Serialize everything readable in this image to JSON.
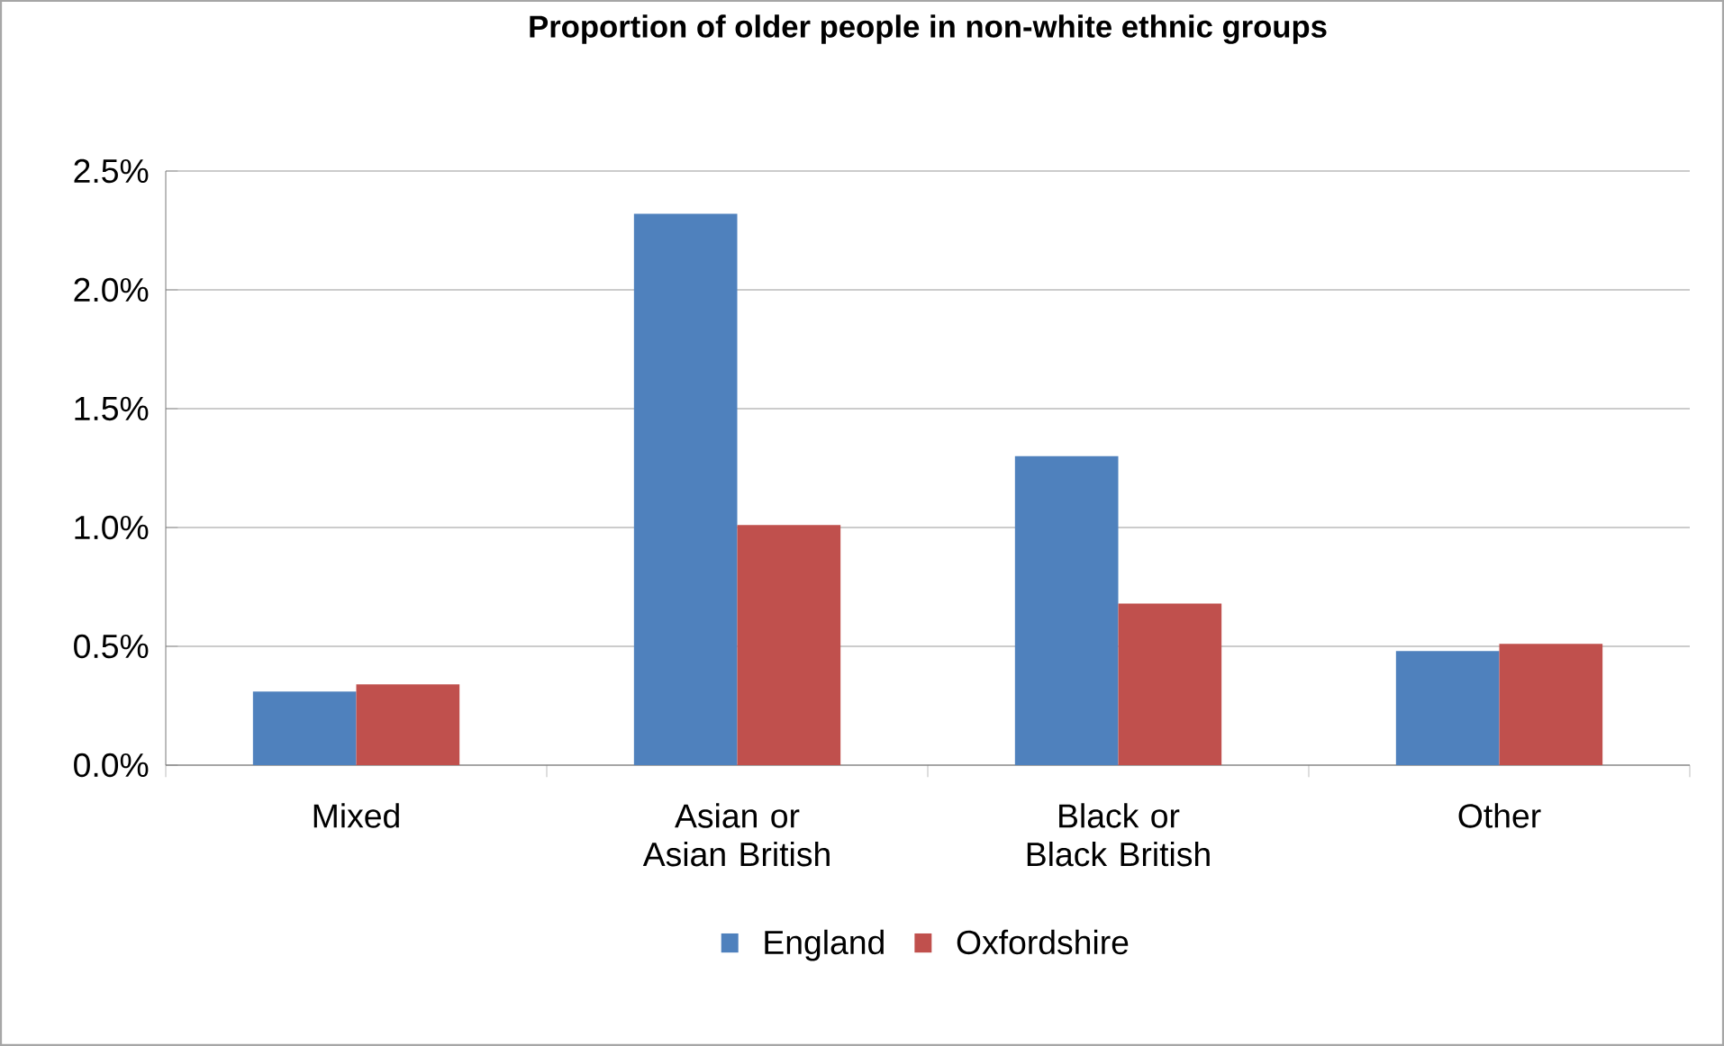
{
  "chart_data": {
    "type": "bar",
    "title": "Proportion of older people in non-white ethnic groups",
    "categories": [
      "Mixed",
      "Asian or Asian British",
      "Black or Black British",
      "Other"
    ],
    "series": [
      {
        "name": "England",
        "color": "#4f81bd",
        "values": [
          0.31,
          2.32,
          1.3,
          0.48
        ]
      },
      {
        "name": "Oxfordshire",
        "color": "#c0504d",
        "values": [
          0.34,
          1.01,
          0.68,
          0.51
        ]
      }
    ],
    "ylim": [
      0,
      2.5
    ],
    "yticks": [
      {
        "value": 0,
        "label": "0.0%"
      },
      {
        "value": 0.5,
        "label": "0.5%"
      },
      {
        "value": 1.0,
        "label": "1.0%"
      },
      {
        "value": 1.5,
        "label": "1.5%"
      },
      {
        "value": 2.0,
        "label": "2.0%"
      },
      {
        "value": 2.5,
        "label": "2.5%"
      }
    ],
    "grid": "y",
    "legend": "bottom"
  }
}
